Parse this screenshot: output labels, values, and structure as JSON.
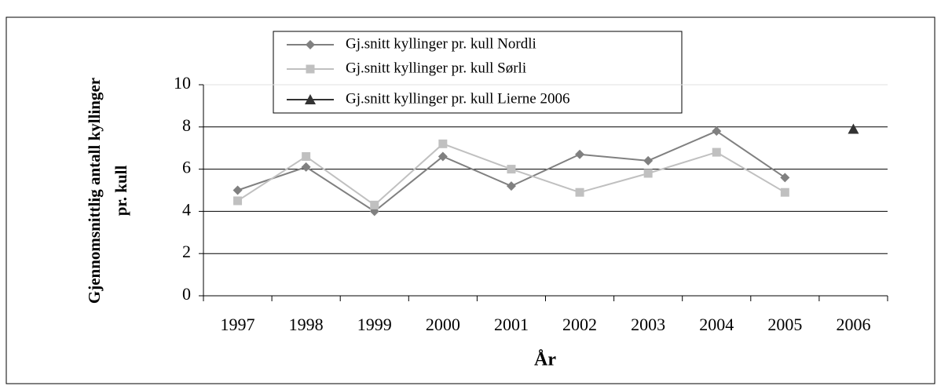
{
  "chart_data": {
    "type": "line",
    "ylabel": [
      "Gjennomsnittlig antall kyllinger",
      "pr. kull"
    ],
    "xlabel": "År",
    "categories": [
      "1997",
      "1998",
      "1999",
      "2000",
      "2001",
      "2002",
      "2003",
      "2004",
      "2005",
      "2006"
    ],
    "series": [
      {
        "name": "Gj.snitt kyllinger pr. kull Nordli",
        "color": "#808080",
        "marker": "diamond",
        "values": [
          5.0,
          6.1,
          4.0,
          6.6,
          5.2,
          6.7,
          6.4,
          7.8,
          5.6,
          null
        ]
      },
      {
        "name": "Gj.snitt kyllinger pr. kull Sørli",
        "color": "#c0c0c0",
        "marker": "square",
        "values": [
          4.5,
          6.6,
          4.3,
          7.2,
          6.0,
          4.9,
          5.8,
          6.8,
          4.9,
          null
        ]
      },
      {
        "name": "Gj.snitt kyllinger pr. kull Lierne 2006",
        "color": "#333333",
        "marker": "triangle",
        "values": [
          null,
          null,
          null,
          null,
          null,
          null,
          null,
          null,
          null,
          7.9
        ]
      }
    ],
    "ylim": [
      0,
      10
    ],
    "yticks": [
      0,
      2,
      4,
      6,
      8,
      10
    ],
    "grid": true
  }
}
